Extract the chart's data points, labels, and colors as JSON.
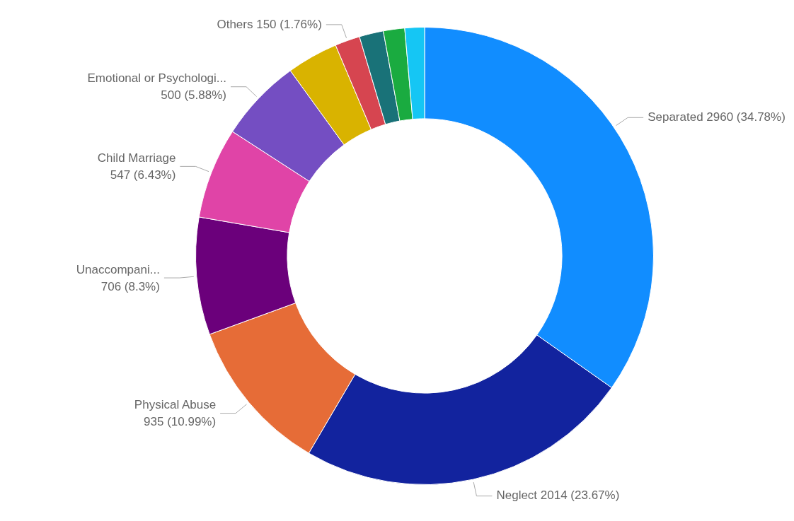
{
  "chart_data": {
    "type": "donut",
    "categories": [
      "Separated",
      "Neglect",
      "Physical Abuse",
      "Unaccompani...",
      "Child Marriage",
      "Emotional or Psychologi...",
      null,
      "Others",
      null,
      null,
      null
    ],
    "values": [
      2960,
      2014,
      935,
      706,
      547,
      500,
      308,
      150,
      145,
      128,
      118
    ],
    "value_labels": [
      "2960 (34.78%)",
      "2014 (23.67%)",
      "935 (10.99%)",
      "706 (8.3%)",
      "547 (6.43%)",
      "500 (5.88%)",
      null,
      "150 (1.76%)",
      null,
      null,
      null
    ],
    "colors": [
      "#118dff",
      "#12239e",
      "#e66c37",
      "#6b007b",
      "#e044a7",
      "#744ec2",
      "#d9b300",
      "#d64550",
      "#197278",
      "#1aab40",
      "#15c6f4"
    ],
    "legend": false
  }
}
